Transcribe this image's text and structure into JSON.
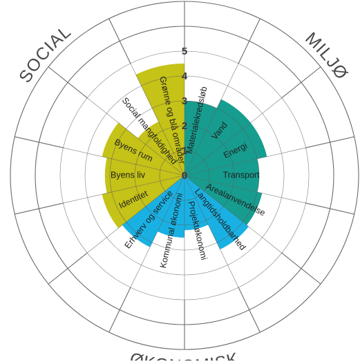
{
  "colors": {
    "social": "#c5c218",
    "miljo": "#169d8f",
    "okonomisk": "#19b1e3",
    "grid": "#6b6b6b",
    "text": "#1e1e1e"
  },
  "scale_labels": [
    "0",
    "1",
    "2",
    "3",
    "4",
    "5"
  ],
  "groups": [
    {
      "name": "SOCIAL",
      "color_key": "social"
    },
    {
      "name": "MILJØ",
      "color_key": "miljo"
    },
    {
      "name": "ØKONOMISK",
      "color_key": "okonomisk"
    }
  ],
  "chart_data": {
    "type": "radial-bar",
    "scale_max": 5,
    "segments": [
      {
        "label": "Materialekredsløb",
        "group": "MILJØ",
        "value": 3
      },
      {
        "label": "Vand",
        "group": "MILJØ",
        "value": 3.4
      },
      {
        "label": "Energi",
        "group": "MILJØ",
        "value": 3.4
      },
      {
        "label": "Transport",
        "group": "MILJØ",
        "value": 3.0
      },
      {
        "label": "Arealanvendelse",
        "group": "MILJØ",
        "value": 3.2
      },
      {
        "label": "Langtidsholdbarhed",
        "group": "ØKONOMISK",
        "value": 3.3
      },
      {
        "label": "Projektøkonomi",
        "group": "ØKONOMISK",
        "value": 2.2
      },
      {
        "label": "Kommunal økonomi",
        "group": "ØKONOMISK",
        "value": 2.5
      },
      {
        "label": "Erhverv og service",
        "group": "ØKONOMISK",
        "value": 3.2
      },
      {
        "label": "Identitet",
        "group": "SOCIAL",
        "value": 3.4
      },
      {
        "label": "Byens liv",
        "group": "SOCIAL",
        "value": 3.2
      },
      {
        "label": "Byens rum",
        "group": "SOCIAL",
        "value": 3.4
      },
      {
        "label": "Social mangfoldighed",
        "group": "SOCIAL",
        "value": 2.4
      },
      {
        "label": "Grønne og blå områder",
        "group": "SOCIAL",
        "value": 4.5
      }
    ]
  }
}
